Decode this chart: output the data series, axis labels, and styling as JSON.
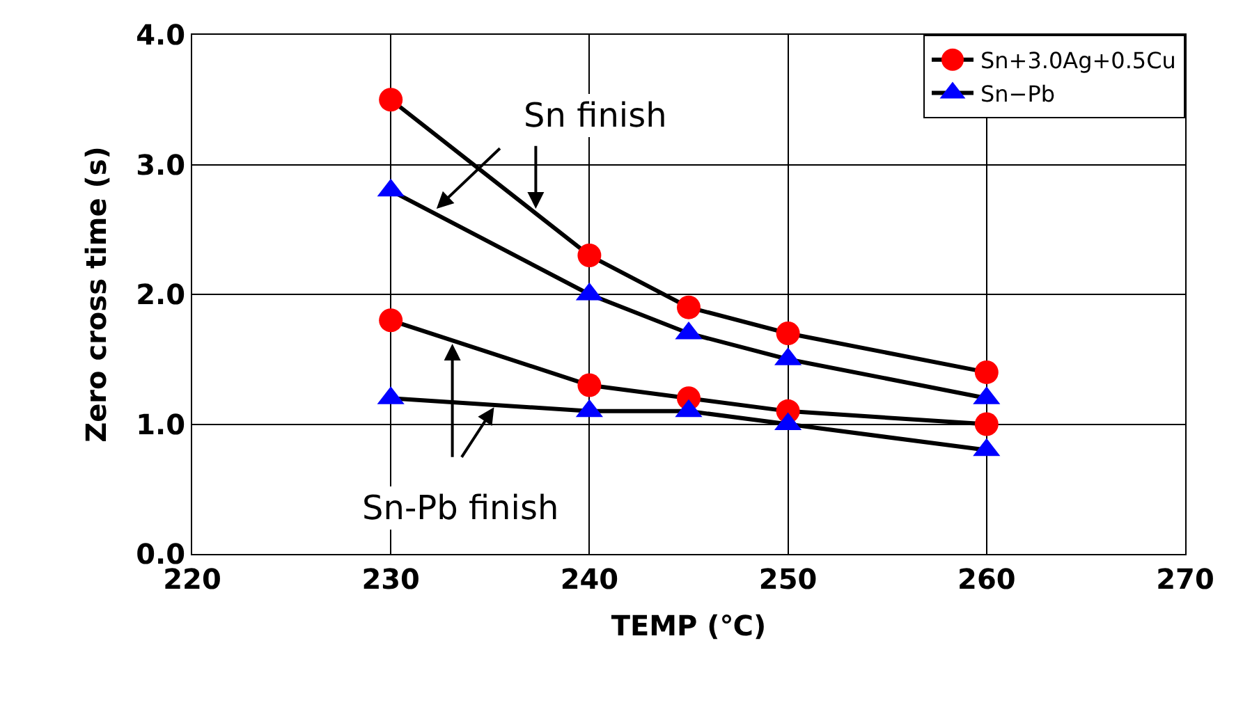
{
  "chart_data": {
    "type": "line",
    "xlabel": "TEMP (℃)",
    "ylabel": "Zero cross time (s)",
    "x": [
      230,
      240,
      245,
      250,
      260
    ],
    "series": [
      {
        "name": "Sn+3.0Ag+0.5Cu",
        "color": "#ff0000",
        "marker": "circle",
        "values": [
          3.5,
          2.3,
          1.9,
          1.7,
          1.4
        ]
      },
      {
        "name": "Sn−Pb",
        "color": "#0000ff",
        "marker": "triangle",
        "values": [
          2.8,
          2.0,
          1.7,
          1.5,
          1.2
        ]
      },
      {
        "color": "#ff0000",
        "marker": "circle",
        "values": [
          1.8,
          1.3,
          1.2,
          1.1,
          1.0
        ]
      },
      {
        "color": "#0000ff",
        "marker": "triangle",
        "values": [
          1.2,
          1.1,
          1.1,
          1.0,
          0.8
        ]
      }
    ],
    "xlim": [
      220,
      270
    ],
    "xticks": [
      220,
      230,
      240,
      250,
      260,
      270
    ],
    "ylim": [
      0,
      4
    ],
    "yticks": [
      {
        "value": 0,
        "label": "0.0"
      },
      {
        "value": 1,
        "label": "1.0"
      },
      {
        "value": 2,
        "label": "2.0"
      },
      {
        "value": 3,
        "label": "3.0"
      },
      {
        "value": 4,
        "label": "4.0"
      }
    ],
    "annotations": [
      {
        "text": "Sn finish",
        "x": 232.3,
        "y": 2.66
      },
      {
        "text": "Sn-Pb finish",
        "x": 233.1,
        "y": 1.62
      }
    ],
    "grid": true,
    "legend": "top right",
    "line_style": "solid"
  }
}
